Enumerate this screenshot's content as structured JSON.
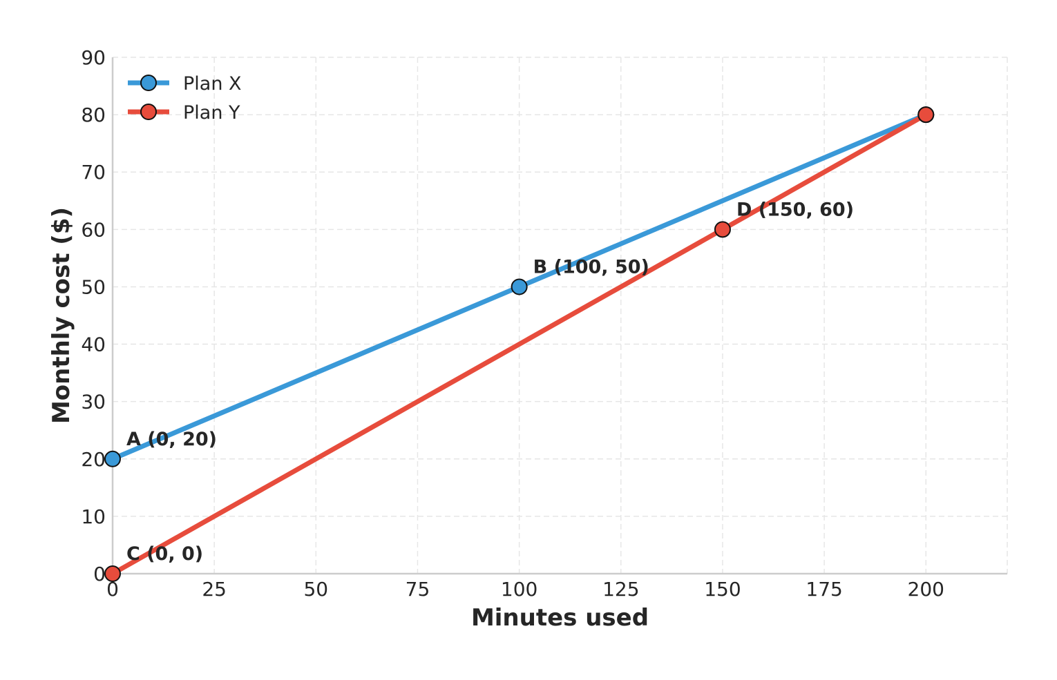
{
  "chart_data": {
    "type": "line",
    "title": "",
    "xlabel": "Minutes used",
    "ylabel": "Monthly cost ($)",
    "xlim": [
      0,
      220
    ],
    "ylim": [
      0,
      90
    ],
    "xticks": [
      0,
      25,
      50,
      75,
      100,
      125,
      150,
      175,
      200
    ],
    "yticks": [
      0,
      10,
      20,
      30,
      40,
      50,
      60,
      70,
      80,
      90
    ],
    "grid": true,
    "legend": "top-left",
    "series": [
      {
        "name": "Plan X",
        "color": "#3a99d8",
        "x": [
          0,
          100,
          200
        ],
        "y": [
          20,
          50,
          80
        ]
      },
      {
        "name": "Plan Y",
        "color": "#e74c3c",
        "x": [
          0,
          150,
          200
        ],
        "y": [
          0,
          60,
          80
        ]
      }
    ],
    "annotations": [
      {
        "text": "A (0, 20)",
        "x": 0,
        "y": 20
      },
      {
        "text": "B (100, 50)",
        "x": 100,
        "y": 50
      },
      {
        "text": "C (0, 0)",
        "x": 0,
        "y": 0
      },
      {
        "text": "D (150, 60)",
        "x": 150,
        "y": 60
      }
    ]
  }
}
